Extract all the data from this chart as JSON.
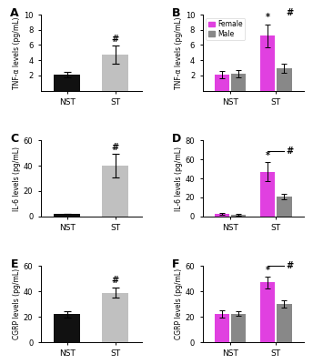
{
  "panels": [
    {
      "label": "A",
      "ylabel": "TNF-α levels (pg/mL)",
      "xlabels": [
        "NST",
        "ST"
      ],
      "values": [
        2.1,
        4.7
      ],
      "errors": [
        0.4,
        1.2
      ],
      "colors": [
        "#111111",
        "#c0c0c0"
      ],
      "ylim": [
        0,
        10
      ],
      "yticks": [
        2,
        4,
        6,
        8,
        10
      ],
      "sig_above": [
        null,
        "#"
      ],
      "type": "single"
    },
    {
      "label": "B",
      "ylabel": "TNF-α levels (pg/mL)",
      "xlabels": [
        "NST",
        "ST"
      ],
      "values_female": [
        2.1,
        7.2
      ],
      "values_male": [
        2.2,
        3.0
      ],
      "errors_female": [
        0.5,
        1.5
      ],
      "errors_male": [
        0.5,
        0.6
      ],
      "color_female": "#e040e0",
      "color_male": "#888888",
      "ylim": [
        0,
        10
      ],
      "yticks": [
        2,
        4,
        6,
        8,
        10
      ],
      "sig_above_female_st": "*",
      "sig_line": "#",
      "type": "double"
    },
    {
      "label": "C",
      "ylabel": "IL-6 levels (pg/mL)",
      "xlabels": [
        "NST",
        "ST"
      ],
      "values": [
        2.0,
        40.0
      ],
      "errors": [
        0.3,
        9.0
      ],
      "colors": [
        "#111111",
        "#c0c0c0"
      ],
      "ylim": [
        0,
        60
      ],
      "yticks": [
        0,
        20,
        40,
        60
      ],
      "sig_above": [
        null,
        "#"
      ],
      "type": "single"
    },
    {
      "label": "D",
      "ylabel": "IL-6 levels (pg/mL)",
      "xlabels": [
        "NST",
        "ST"
      ],
      "values_female": [
        2.5,
        47.0
      ],
      "values_male": [
        2.0,
        21.0
      ],
      "errors_female": [
        1.0,
        10.0
      ],
      "errors_male": [
        0.8,
        3.0
      ],
      "color_female": "#e040e0",
      "color_male": "#888888",
      "ylim": [
        0,
        80
      ],
      "yticks": [
        0,
        20,
        40,
        60,
        80
      ],
      "sig_above_female_st": "*",
      "sig_line": "#",
      "type": "double"
    },
    {
      "label": "E",
      "ylabel": "CGRP levels (pg/mL)",
      "xlabels": [
        "NST",
        "ST"
      ],
      "values": [
        22.0,
        39.0
      ],
      "errors": [
        2.5,
        4.0
      ],
      "colors": [
        "#111111",
        "#c0c0c0"
      ],
      "ylim": [
        0,
        60
      ],
      "yticks": [
        0,
        20,
        40,
        60
      ],
      "sig_above": [
        null,
        "#"
      ],
      "type": "single"
    },
    {
      "label": "F",
      "ylabel": "CGRP levels (pg/mL)",
      "xlabels": [
        "NST",
        "ST"
      ],
      "values_female": [
        22.0,
        47.0
      ],
      "values_male": [
        22.5,
        30.0
      ],
      "errors_female": [
        3.0,
        4.5
      ],
      "errors_male": [
        2.0,
        3.0
      ],
      "color_female": "#e040e0",
      "color_male": "#888888",
      "ylim": [
        0,
        60
      ],
      "yticks": [
        0,
        20,
        40,
        60
      ],
      "sig_above_female_st": "*",
      "sig_line": "#",
      "type": "double"
    }
  ],
  "legend_female": "Female",
  "legend_male": "Male",
  "color_female": "#e040e0",
  "color_male": "#888888"
}
